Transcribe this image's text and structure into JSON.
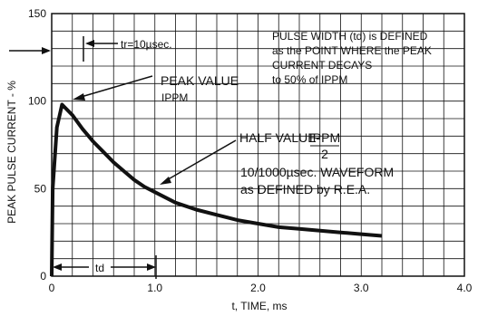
{
  "chart_data": {
    "type": "line",
    "xlabel": "t, TIME, ms",
    "ylabel": "PEAK PULSE CURRENT - %",
    "xlim": [
      0,
      4.0
    ],
    "ylim": [
      0,
      150
    ],
    "x_ticks": [
      "0",
      "1.0",
      "2.0",
      "3.0",
      "4.0"
    ],
    "y_ticks": [
      "0",
      "50",
      "100",
      "150"
    ],
    "grid": true,
    "series": [
      {
        "x": [
          0.0,
          0.01,
          0.05,
          0.1,
          0.2,
          0.3,
          0.4,
          0.5,
          0.6,
          0.7,
          0.8,
          0.9,
          1.0,
          1.2,
          1.4,
          1.6,
          1.8,
          2.0,
          2.2,
          2.4,
          2.6,
          2.8,
          3.0,
          3.2
        ],
        "y": [
          0,
          50,
          85,
          98,
          92,
          84,
          77,
          71,
          65,
          60,
          55,
          51,
          48,
          42,
          38,
          35,
          32,
          30,
          28,
          27,
          26,
          25,
          24,
          23
        ]
      }
    ],
    "annotations": {
      "tr": "tr=10µsec.",
      "peak_value": "PEAK VALUE",
      "peak_sub": "IPPM",
      "half_value": "HALF VALUE-",
      "half_num": "IPPM",
      "half_den": "2",
      "waveform_1": "10/1000µsec. WAVEFORM",
      "waveform_2": "as DEFINED by R.E.A.",
      "td": "td",
      "pulse_1": "PULSE WIDTH (td) is DEFINED",
      "pulse_2": "as the POINT WHERE the PEAK",
      "pulse_3": "CURRENT DECAYS",
      "pulse_4": "to 50% of IPPM"
    }
  }
}
